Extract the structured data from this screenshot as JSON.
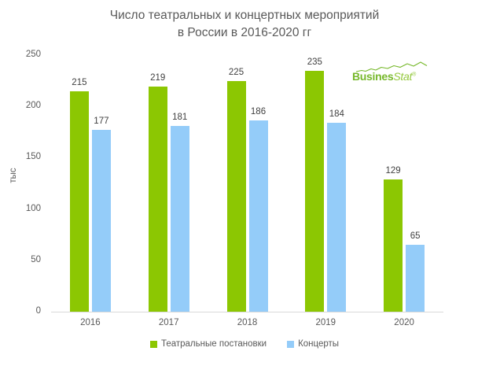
{
  "title_lines": [
    "Число театральных и концертных мероприятий",
    "в России в 2016-2020 гг"
  ],
  "logo": {
    "bold": "Busines",
    "light": "Stat",
    "registered": "®",
    "color": "#76b82a",
    "color_light": "#94c83d"
  },
  "chart_data": {
    "type": "bar",
    "title": "Число театральных и концертных мероприятий в России в 2016-2020 гг",
    "categories": [
      "2016",
      "2017",
      "2018",
      "2019",
      "2020"
    ],
    "series": [
      {
        "name": "Театральные постановки",
        "color": "#8cc702",
        "values": [
          215,
          219,
          225,
          235,
          129
        ]
      },
      {
        "name": "Концерты",
        "color": "#94ccf9",
        "values": [
          177,
          181,
          186,
          184,
          65
        ]
      }
    ],
    "xlabel": "",
    "ylabel": "тыс",
    "ylim": [
      0,
      250
    ],
    "yticks": [
      0,
      50,
      100,
      150,
      200,
      250
    ],
    "grid": false,
    "data_labels": true,
    "legend_position": "bottom"
  },
  "colors": {
    "title_text": "#595959",
    "axis_text": "#595959",
    "label_text": "#404040",
    "axis_line": "#d9d9d9"
  }
}
